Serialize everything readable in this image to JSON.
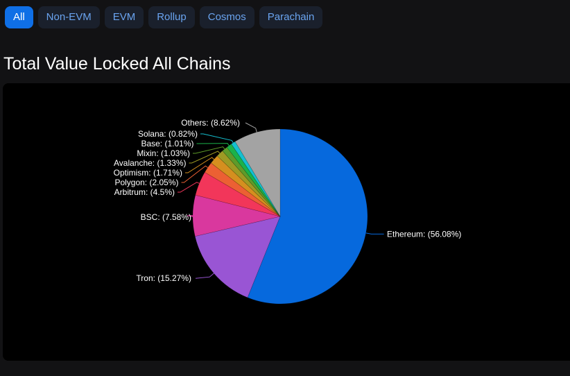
{
  "filters": {
    "items": [
      {
        "label": "All",
        "active": true
      },
      {
        "label": "Non-EVM",
        "active": false
      },
      {
        "label": "EVM",
        "active": false
      },
      {
        "label": "Rollup",
        "active": false
      },
      {
        "label": "Cosmos",
        "active": false
      },
      {
        "label": "Parachain",
        "active": false
      }
    ]
  },
  "header": {
    "title": "Total Value Locked All Chains"
  },
  "chart_data": {
    "type": "pie",
    "start": "12 o'clock",
    "direction": "clockwise",
    "slices": [
      {
        "name": "Ethereum",
        "value": 56.08,
        "label": "Ethereum: (56.08%)",
        "color": "#0669dd",
        "side": "right"
      },
      {
        "name": "Tron",
        "value": 15.27,
        "label": "Tron: (15.27%)",
        "color": "#9955d4",
        "side": "left"
      },
      {
        "name": "BSC",
        "value": 7.58,
        "label": "BSC: (7.58%)",
        "color": "#d9389e",
        "side": "left"
      },
      {
        "name": "Arbitrum",
        "value": 4.5,
        "label": "Arbitrum: (4.5%)",
        "color": "#f2365a",
        "side": "left"
      },
      {
        "name": "Polygon",
        "value": 2.05,
        "label": "Polygon: (2.05%)",
        "color": "#ec6033",
        "side": "left"
      },
      {
        "name": "Optimism",
        "value": 1.71,
        "label": "Optimism: (1.71%)",
        "color": "#d58f1f",
        "side": "left"
      },
      {
        "name": "Avalanche",
        "value": 1.33,
        "label": "Avalanche: (1.33%)",
        "color": "#9e9a24",
        "side": "left"
      },
      {
        "name": "Mixin",
        "value": 1.03,
        "label": "Mixin: (1.03%)",
        "color": "#5e9b2a",
        "side": "left"
      },
      {
        "name": "Base",
        "value": 1.01,
        "label": "Base: (1.01%)",
        "color": "#1bb24a",
        "side": "left"
      },
      {
        "name": "Solana",
        "value": 0.82,
        "label": "Solana: (0.82%)",
        "color": "#14c0d0",
        "side": "left"
      },
      {
        "name": "Others",
        "value": 8.62,
        "label": "Others: (8.62%)",
        "color": "#a3a3a3",
        "side": "top"
      }
    ]
  }
}
